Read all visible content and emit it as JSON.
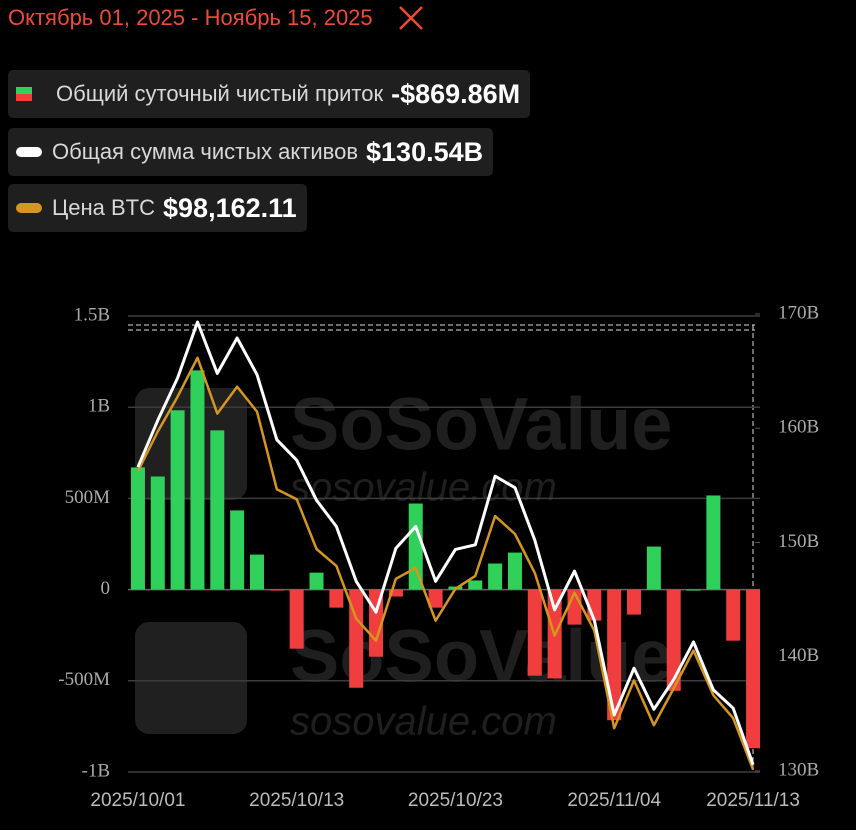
{
  "chart_data": {
    "type": "combo",
    "title": "Октябрь 01, 2025 - Ноябрь 15, 2025",
    "watermark": "SoSoValue",
    "watermark_sub": "sosovalue.com",
    "categories": [
      "2025/10/01",
      null,
      null,
      null,
      null,
      null,
      null,
      null,
      "2025/10/13",
      null,
      null,
      null,
      null,
      null,
      null,
      null,
      "2025/10/23",
      null,
      null,
      null,
      null,
      null,
      null,
      null,
      "2025/11/04",
      null,
      null,
      null,
      null,
      null,
      null,
      "2025/11/13"
    ],
    "ylim": [
      -1000,
      1500
    ],
    "yticks": [
      {
        "value": -1000,
        "label": "-1B"
      },
      {
        "value": -500,
        "label": "-500M"
      },
      0,
      {
        "value": 500,
        "label": "500M"
      },
      {
        "value": 1000,
        "label": "1B"
      },
      {
        "value": 1500,
        "label": "1.5B"
      }
    ],
    "y2lim": [
      130,
      170
    ],
    "y2ticks": [
      {
        "value": 130,
        "label": "130B"
      },
      {
        "value": 140,
        "label": "140B"
      },
      {
        "value": 150,
        "label": "150B"
      },
      {
        "value": 160,
        "label": "160B"
      },
      {
        "value": 170,
        "label": "170B"
      }
    ],
    "y3lim": [
      98000,
      128750
    ],
    "grid": true,
    "series": [
      {
        "name": "Общий суточный чистый приток",
        "latest_label": "-$869.86M",
        "type": "bar",
        "axis": "y",
        "color": "#2fd15a",
        "negative_color": "#f03e3e",
        "values": [
          670,
          620,
          983,
          1202,
          873,
          434,
          192,
          -5,
          -324,
          93,
          -99,
          -538,
          -368,
          -38,
          472,
          -99,
          17,
          50,
          143,
          203,
          -472,
          -487,
          -192,
          -170,
          -716,
          -137,
          236,
          -555,
          0,
          516,
          -280,
          -869.86
        ]
      },
      {
        "name": "Общая сумма чистых активов",
        "latest_label": "$130.54B",
        "type": "line",
        "axis": "y2",
        "color": "#ffffff",
        "values": [
          156.6,
          160.7,
          164.4,
          169.3,
          164.8,
          167.9,
          164.7,
          159.0,
          157.2,
          153.7,
          151.4,
          146.6,
          143.9,
          149.5,
          151.4,
          146.6,
          149.4,
          149.8,
          155.8,
          154.8,
          150.2,
          144.1,
          147.5,
          143.2,
          134.9,
          139.0,
          135.4,
          138.0,
          141.3,
          137.1,
          135.5,
          130.54
        ]
      },
      {
        "name": "Цена BTC",
        "latest_label": "$98,162.11",
        "type": "line",
        "axis": "y3",
        "color": "#d4961e",
        "values": [
          118277,
          120962,
          123311,
          125930,
          122170,
          123983,
          122304,
          117068,
          116397,
          113040,
          111898,
          108340,
          106862,
          111025,
          111764,
          108205,
          110354,
          111227,
          115255,
          114047,
          111428,
          107198,
          110085,
          107534,
          100954,
          104177,
          101156,
          103640,
          106191,
          103170,
          101626,
          98162.11
        ]
      }
    ]
  }
}
